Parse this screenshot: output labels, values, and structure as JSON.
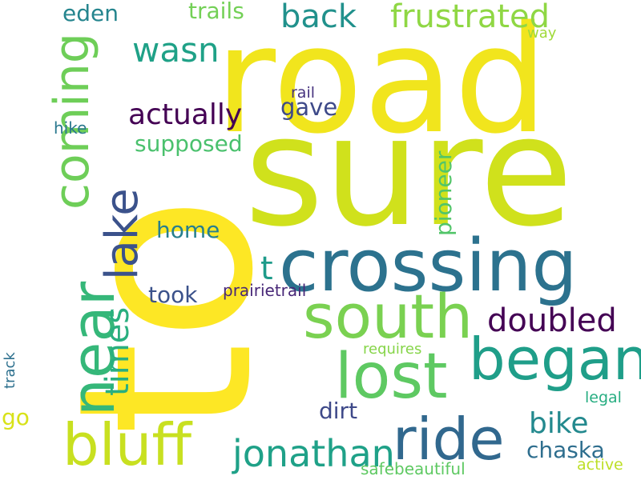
{
  "words": [
    {
      "text": "to",
      "color": "#fde725",
      "vertical": true
    },
    {
      "text": "road",
      "color": "#f1e51d",
      "vertical": false
    },
    {
      "text": "sure",
      "color": "#d0e11c",
      "vertical": false
    },
    {
      "text": "crossing",
      "color": "#2c728e",
      "vertical": false
    },
    {
      "text": "coming",
      "color": "#6ece58",
      "vertical": true
    },
    {
      "text": "lake",
      "color": "#3b528b",
      "vertical": true
    },
    {
      "text": "near",
      "color": "#35b779",
      "vertical": true
    },
    {
      "text": "south",
      "color": "#7ad151",
      "vertical": false
    },
    {
      "text": "began",
      "color": "#1f9e89",
      "vertical": false
    },
    {
      "text": "lost",
      "color": "#5ec962",
      "vertical": false
    },
    {
      "text": "ride",
      "color": "#31688e",
      "vertical": false
    },
    {
      "text": "bluff",
      "color": "#c8e020",
      "vertical": false
    },
    {
      "text": "frustrated",
      "color": "#8fd744",
      "vertical": false
    },
    {
      "text": "back",
      "color": "#21918c",
      "vertical": false
    },
    {
      "text": "wasn",
      "color": "#1fa187",
      "vertical": false
    },
    {
      "text": "eden",
      "color": "#25858e",
      "vertical": false
    },
    {
      "text": "trails",
      "color": "#73d056",
      "vertical": false
    },
    {
      "text": "actually",
      "color": "#440154",
      "vertical": false
    },
    {
      "text": "gave",
      "color": "#3e4a89",
      "vertical": false
    },
    {
      "text": "rail",
      "color": "#46327e",
      "vertical": false
    },
    {
      "text": "way",
      "color": "#a0da39",
      "vertical": false
    },
    {
      "text": "hike",
      "color": "#2a788e",
      "vertical": false
    },
    {
      "text": "supposed",
      "color": "#4ac16d",
      "vertical": false
    },
    {
      "text": "pioneer",
      "color": "#52c569",
      "vertical": true
    },
    {
      "text": "home",
      "color": "#277f8e",
      "vertical": false
    },
    {
      "text": "t",
      "color": "#1e9b8a",
      "vertical": false
    },
    {
      "text": "times",
      "color": "#29af7f",
      "vertical": true
    },
    {
      "text": "took",
      "color": "#3b528b",
      "vertical": false
    },
    {
      "text": "prairietrail",
      "color": "#482878",
      "vertical": false
    },
    {
      "text": "doubled",
      "color": "#440154",
      "vertical": false
    },
    {
      "text": "track",
      "color": "#2d708e",
      "vertical": true
    },
    {
      "text": "requires",
      "color": "#86d549",
      "vertical": false
    },
    {
      "text": "go",
      "color": "#d8e219",
      "vertical": false
    },
    {
      "text": "dirt",
      "color": "#3e4989",
      "vertical": false
    },
    {
      "text": "bike",
      "color": "#23898e",
      "vertical": false
    },
    {
      "text": "legal",
      "color": "#26ad81",
      "vertical": false
    },
    {
      "text": "jonathan",
      "color": "#1fa188",
      "vertical": false
    },
    {
      "text": "chaska",
      "color": "#2e6e8e",
      "vertical": false
    },
    {
      "text": "safebeautiful",
      "color": "#5ec962",
      "vertical": false
    },
    {
      "text": "active",
      "color": "#bddf26",
      "vertical": false
    }
  ]
}
